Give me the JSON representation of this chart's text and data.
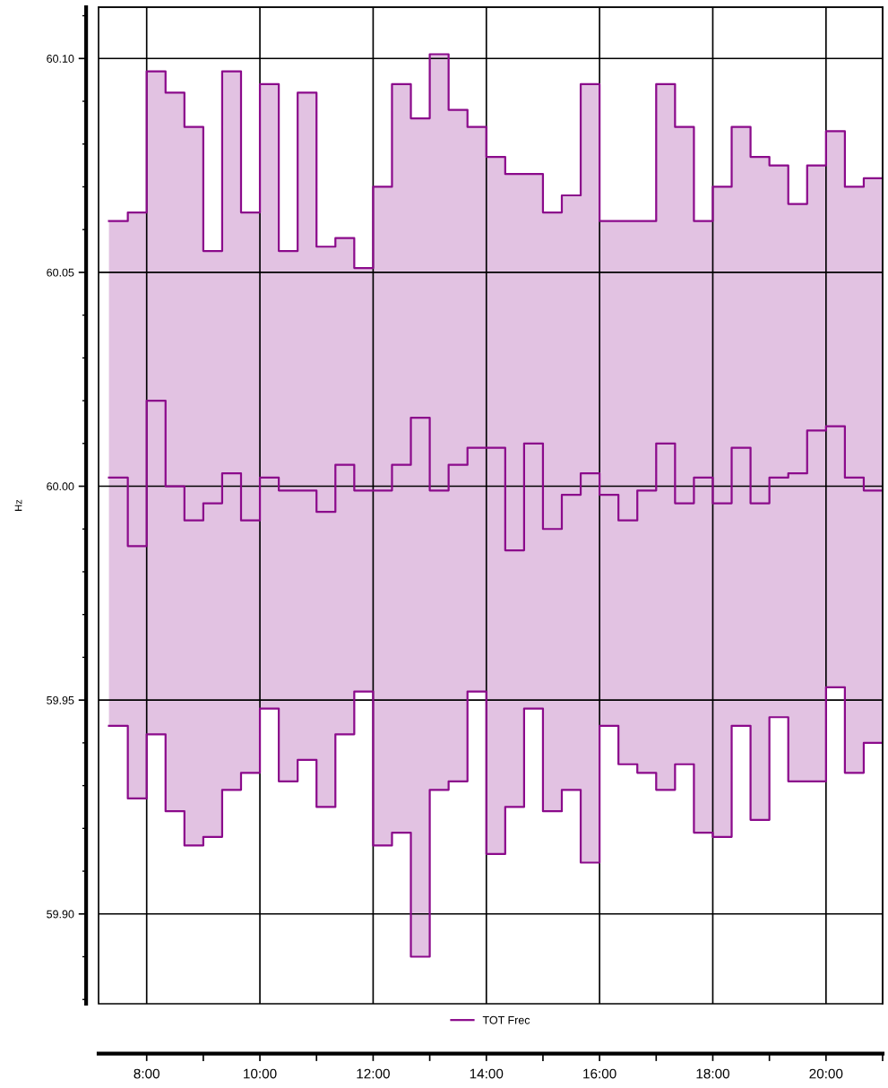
{
  "chart_data": {
    "type": "step",
    "ylabel": "Hz",
    "x": [
      7.3333,
      7.6667,
      8,
      8.3333,
      8.6667,
      9,
      9.3333,
      9.6667,
      10,
      10.3333,
      10.6667,
      11,
      11.3333,
      11.6667,
      12,
      12.3333,
      12.6667,
      13,
      13.3333,
      13.6667,
      14,
      14.3333,
      14.6667,
      15,
      15.3333,
      15.6667,
      16,
      16.3333,
      16.6667,
      17,
      17.3333,
      17.6667,
      18,
      18.3333,
      18.6667,
      19,
      19.3333,
      19.6667,
      20,
      20.3333,
      20.6667,
      21
    ],
    "series": [
      {
        "name": "TOT Frec",
        "color": "#8b0a8b",
        "values": [
          60.002,
          59.986,
          60.02,
          60.0,
          59.992,
          59.996,
          60.003,
          59.992,
          60.002,
          59.999,
          59.999,
          59.994,
          60.005,
          59.999,
          59.999,
          60.005,
          60.016,
          59.999,
          60.005,
          60.009,
          60.009,
          59.985,
          60.01,
          59.99,
          59.998,
          60.003,
          59.998,
          59.992,
          59.999,
          60.01,
          59.996,
          60.002,
          59.996,
          60.009,
          59.996,
          60.002,
          60.003,
          60.013,
          60.014,
          60.002,
          59.999,
          59.999
        ],
        "lower": [
          59.944,
          59.927,
          59.942,
          59.924,
          59.916,
          59.918,
          59.929,
          59.933,
          59.948,
          59.931,
          59.936,
          59.925,
          59.942,
          59.952,
          59.916,
          59.919,
          59.89,
          59.929,
          59.931,
          59.952,
          59.914,
          59.925,
          59.948,
          59.924,
          59.929,
          59.912,
          59.944,
          59.935,
          59.933,
          59.929,
          59.935,
          59.919,
          59.918,
          59.944,
          59.922,
          59.946,
          59.931,
          59.931,
          59.953,
          59.933,
          59.94,
          59.94
        ],
        "upper": [
          60.062,
          60.064,
          60.097,
          60.092,
          60.084,
          60.055,
          60.097,
          60.064,
          60.094,
          60.055,
          60.092,
          60.056,
          60.058,
          60.051,
          60.07,
          60.094,
          60.086,
          60.101,
          60.088,
          60.084,
          60.077,
          60.073,
          60.073,
          60.064,
          60.068,
          60.094,
          60.062,
          60.062,
          60.062,
          60.094,
          60.084,
          60.062,
          60.07,
          60.084,
          60.077,
          60.075,
          60.066,
          60.075,
          60.083,
          60.07,
          60.072,
          60.072
        ]
      },
      {
        "color": "#8b0a8b",
        "values": [
          60.062,
          60.064,
          60.097,
          60.092,
          60.084,
          60.055,
          60.097,
          60.064,
          60.094,
          60.055,
          60.092,
          60.056,
          60.058,
          60.051,
          60.07,
          60.094,
          60.086,
          60.101,
          60.088,
          60.084,
          60.077,
          60.073,
          60.073,
          60.064,
          60.068,
          60.094,
          60.062,
          60.062,
          60.062,
          60.094,
          60.084,
          60.062,
          60.07,
          60.084,
          60.077,
          60.075,
          60.066,
          60.075,
          60.083,
          60.07,
          60.072,
          60.072
        ]
      },
      {
        "color": "#8b0a8b",
        "values": [
          59.944,
          59.927,
          59.942,
          59.924,
          59.916,
          59.918,
          59.929,
          59.933,
          59.948,
          59.931,
          59.936,
          59.925,
          59.942,
          59.952,
          59.916,
          59.919,
          59.89,
          59.929,
          59.931,
          59.952,
          59.914,
          59.925,
          59.948,
          59.924,
          59.929,
          59.912,
          59.944,
          59.935,
          59.933,
          59.929,
          59.935,
          59.919,
          59.918,
          59.944,
          59.922,
          59.946,
          59.931,
          59.931,
          59.953,
          59.933,
          59.94,
          59.94
        ]
      }
    ],
    "xlim": [
      7.15,
      21.0
    ],
    "xticks": [
      {
        "value": 8,
        "label": "8:00"
      },
      {
        "value": 10,
        "label": "10:00"
      },
      {
        "value": 12,
        "label": "12:00"
      },
      {
        "value": 14,
        "label": "14:00"
      },
      {
        "value": 16,
        "label": "16:00"
      },
      {
        "value": 18,
        "label": "18:00"
      },
      {
        "value": 20,
        "label": "20:00"
      }
    ],
    "ylim": [
      59.879,
      60.112
    ],
    "yticks": [
      {
        "value": 59.9,
        "label": "59.90"
      },
      {
        "value": 59.95,
        "label": "59.95"
      },
      {
        "value": 60.0,
        "label": "60.00"
      },
      {
        "value": 60.05,
        "label": "60.05"
      },
      {
        "value": 60.1,
        "label": "60.10"
      }
    ],
    "grid": true,
    "legend": "bottom",
    "marker": "none",
    "line_style": "solid"
  }
}
